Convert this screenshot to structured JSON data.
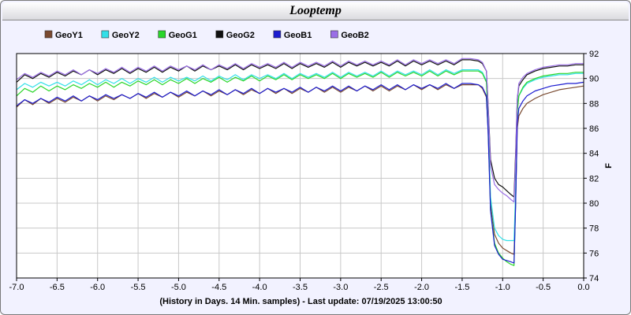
{
  "window": {
    "title": "Looptemp"
  },
  "footer": {
    "text": "(History in Days. 14 Min. samples) - Last update: 07/19/2025 13:00:50"
  },
  "chart_data": {
    "type": "line",
    "title": "Looptemp",
    "ylabel": "F",
    "xlabel": "(History in Days. 14 Min. samples) - Last update: 07/19/2025 13:00:50",
    "xlim": [
      -7.0,
      0.0
    ],
    "ylim": [
      74,
      92
    ],
    "x_ticks": [
      "-7.0",
      "-6.5",
      "-6.0",
      "-5.5",
      "-5.0",
      "-4.5",
      "-4.0",
      "-3.5",
      "-3.0",
      "-2.5",
      "-2.0",
      "-1.5",
      "-1.0",
      "-0.5",
      "0.0"
    ],
    "y_ticks": [
      "74",
      "76",
      "78",
      "80",
      "82",
      "84",
      "86",
      "88",
      "90",
      "92"
    ],
    "grid": true,
    "legend_position": "top",
    "x": [
      -7.0,
      -6.9,
      -6.8,
      -6.7,
      -6.6,
      -6.5,
      -6.4,
      -6.3,
      -6.2,
      -6.1,
      -6.0,
      -5.9,
      -5.8,
      -5.7,
      -5.6,
      -5.5,
      -5.4,
      -5.3,
      -5.2,
      -5.1,
      -5.0,
      -4.9,
      -4.8,
      -4.7,
      -4.6,
      -4.5,
      -4.4,
      -4.3,
      -4.2,
      -4.1,
      -4.0,
      -3.9,
      -3.8,
      -3.7,
      -3.6,
      -3.5,
      -3.4,
      -3.3,
      -3.2,
      -3.1,
      -3.0,
      -2.9,
      -2.8,
      -2.7,
      -2.6,
      -2.5,
      -2.4,
      -2.3,
      -2.2,
      -2.1,
      -2.0,
      -1.9,
      -1.8,
      -1.7,
      -1.6,
      -1.5,
      -1.4,
      -1.3,
      -1.25,
      -1.2,
      -1.18,
      -1.15,
      -1.1,
      -1.05,
      -1.0,
      -0.95,
      -0.9,
      -0.86,
      -0.84,
      -0.82,
      -0.8,
      -0.75,
      -0.7,
      -0.6,
      -0.5,
      -0.4,
      -0.3,
      -0.2,
      -0.1,
      0.0
    ],
    "series": [
      {
        "name": "GeoY1",
        "color": "#7a4a30",
        "values": [
          87.7,
          88.3,
          87.9,
          88.4,
          88.0,
          88.4,
          88.1,
          88.5,
          88.2,
          88.6,
          88.2,
          88.6,
          88.3,
          88.7,
          88.4,
          88.8,
          88.4,
          88.8,
          88.5,
          88.9,
          88.5,
          88.9,
          88.6,
          89.0,
          88.6,
          89.0,
          88.7,
          89.1,
          88.7,
          89.1,
          88.8,
          89.2,
          88.8,
          89.2,
          88.8,
          89.2,
          88.9,
          89.3,
          88.9,
          89.3,
          88.9,
          89.3,
          89.0,
          89.4,
          89.0,
          89.4,
          89.0,
          89.4,
          89.1,
          89.5,
          89.1,
          89.5,
          89.1,
          89.5,
          89.2,
          89.5,
          89.5,
          89.5,
          89.2,
          88.5,
          86.0,
          80.0,
          77.5,
          76.8,
          76.4,
          76.2,
          76.0,
          75.9,
          80.0,
          86.0,
          87.0,
          87.6,
          88.0,
          88.4,
          88.7,
          88.9,
          89.1,
          89.2,
          89.3,
          89.4
        ]
      },
      {
        "name": "GeoY2",
        "color": "#33e0e8",
        "values": [
          89.1,
          89.6,
          89.3,
          89.7,
          89.4,
          89.7,
          89.4,
          89.8,
          89.5,
          89.9,
          89.5,
          89.9,
          89.6,
          90.0,
          89.6,
          90.0,
          89.7,
          90.1,
          89.7,
          90.1,
          89.8,
          90.1,
          89.8,
          90.2,
          89.8,
          90.2,
          89.9,
          90.3,
          89.9,
          90.3,
          90.0,
          90.3,
          90.0,
          90.4,
          90.0,
          90.4,
          90.1,
          90.4,
          90.1,
          90.5,
          90.1,
          90.5,
          90.2,
          90.5,
          90.2,
          90.6,
          90.2,
          90.6,
          90.3,
          90.6,
          90.3,
          90.7,
          90.3,
          90.7,
          90.4,
          90.7,
          90.7,
          90.7,
          90.5,
          89.8,
          87.0,
          80.5,
          78.0,
          77.4,
          77.1,
          77.0,
          77.0,
          77.0,
          81.0,
          87.5,
          88.6,
          89.2,
          89.6,
          89.9,
          90.1,
          90.2,
          90.3,
          90.3,
          90.4,
          90.4
        ]
      },
      {
        "name": "GeoG1",
        "color": "#2ad62a",
        "values": [
          88.6,
          89.2,
          88.9,
          89.4,
          89.0,
          89.4,
          89.1,
          89.5,
          89.2,
          89.6,
          89.3,
          89.7,
          89.3,
          89.7,
          89.4,
          89.8,
          89.5,
          89.9,
          89.5,
          89.9,
          89.6,
          90.0,
          89.6,
          90.0,
          89.7,
          90.1,
          89.7,
          90.1,
          89.8,
          90.2,
          89.8,
          90.2,
          89.9,
          90.3,
          89.9,
          90.3,
          90.0,
          90.3,
          90.0,
          90.4,
          90.0,
          90.4,
          90.1,
          90.4,
          90.1,
          90.5,
          90.1,
          90.5,
          90.2,
          90.5,
          90.2,
          90.6,
          90.2,
          90.6,
          90.3,
          90.6,
          90.6,
          90.6,
          90.4,
          89.7,
          86.5,
          79.5,
          76.8,
          76.0,
          75.6,
          75.3,
          75.1,
          75.0,
          80.0,
          87.3,
          88.6,
          89.3,
          89.7,
          90.0,
          90.2,
          90.3,
          90.4,
          90.4,
          90.5,
          90.5
        ]
      },
      {
        "name": "GeoG2",
        "color": "#111111",
        "values": [
          89.7,
          90.3,
          90.0,
          90.4,
          90.1,
          90.5,
          90.2,
          90.6,
          90.3,
          90.7,
          90.3,
          90.7,
          90.4,
          90.8,
          90.4,
          90.8,
          90.5,
          90.9,
          90.5,
          90.9,
          90.6,
          91.0,
          90.6,
          91.0,
          90.7,
          91.0,
          90.7,
          91.1,
          90.7,
          91.1,
          90.8,
          91.1,
          90.8,
          91.2,
          90.8,
          91.2,
          90.9,
          91.2,
          90.9,
          91.3,
          90.9,
          91.3,
          91.0,
          91.3,
          91.0,
          91.3,
          91.0,
          91.4,
          91.0,
          91.4,
          91.1,
          91.4,
          91.1,
          91.4,
          91.1,
          91.5,
          91.5,
          91.4,
          91.2,
          90.6,
          88.0,
          83.5,
          82.0,
          81.5,
          81.3,
          81.0,
          80.7,
          80.5,
          84.0,
          88.3,
          89.4,
          89.9,
          90.3,
          90.6,
          90.8,
          90.9,
          91.0,
          91.0,
          91.1,
          91.1
        ]
      },
      {
        "name": "GeoB1",
        "color": "#1c1cd0",
        "values": [
          87.8,
          88.3,
          88.0,
          88.4,
          88.1,
          88.5,
          88.2,
          88.6,
          88.2,
          88.6,
          88.3,
          88.7,
          88.4,
          88.7,
          88.4,
          88.8,
          88.5,
          88.9,
          88.5,
          88.9,
          88.6,
          89.0,
          88.6,
          89.0,
          88.7,
          89.1,
          88.7,
          89.1,
          88.8,
          89.2,
          88.8,
          89.2,
          88.9,
          89.2,
          88.9,
          89.3,
          88.9,
          89.3,
          89.0,
          89.4,
          89.0,
          89.4,
          89.0,
          89.4,
          89.1,
          89.5,
          89.1,
          89.5,
          89.1,
          89.5,
          89.2,
          89.5,
          89.2,
          89.6,
          89.2,
          89.6,
          89.6,
          89.5,
          89.3,
          88.6,
          85.8,
          79.4,
          76.6,
          75.9,
          75.5,
          75.4,
          75.3,
          75.2,
          79.8,
          86.4,
          87.6,
          88.2,
          88.6,
          89.0,
          89.2,
          89.4,
          89.5,
          89.6,
          89.6,
          89.7
        ]
      },
      {
        "name": "GeoB2",
        "color": "#9a6ee6",
        "values": [
          89.9,
          90.4,
          90.1,
          90.5,
          90.2,
          90.6,
          90.3,
          90.7,
          90.3,
          90.7,
          90.4,
          90.8,
          90.5,
          90.9,
          90.5,
          90.9,
          90.6,
          91.0,
          90.6,
          91.0,
          90.7,
          91.0,
          90.7,
          91.1,
          90.7,
          91.1,
          90.8,
          91.2,
          90.8,
          91.2,
          90.9,
          91.2,
          90.9,
          91.3,
          90.9,
          91.3,
          91.0,
          91.3,
          91.0,
          91.4,
          91.0,
          91.4,
          91.1,
          91.4,
          91.1,
          91.4,
          91.1,
          91.5,
          91.1,
          91.5,
          91.2,
          91.5,
          91.2,
          91.5,
          91.2,
          91.6,
          91.6,
          91.5,
          91.3,
          90.6,
          88.0,
          83.0,
          81.5,
          81.1,
          80.8,
          80.6,
          80.3,
          80.1,
          83.5,
          88.4,
          89.6,
          90.1,
          90.4,
          90.7,
          90.9,
          91.0,
          91.1,
          91.1,
          91.2,
          91.2
        ]
      }
    ]
  }
}
